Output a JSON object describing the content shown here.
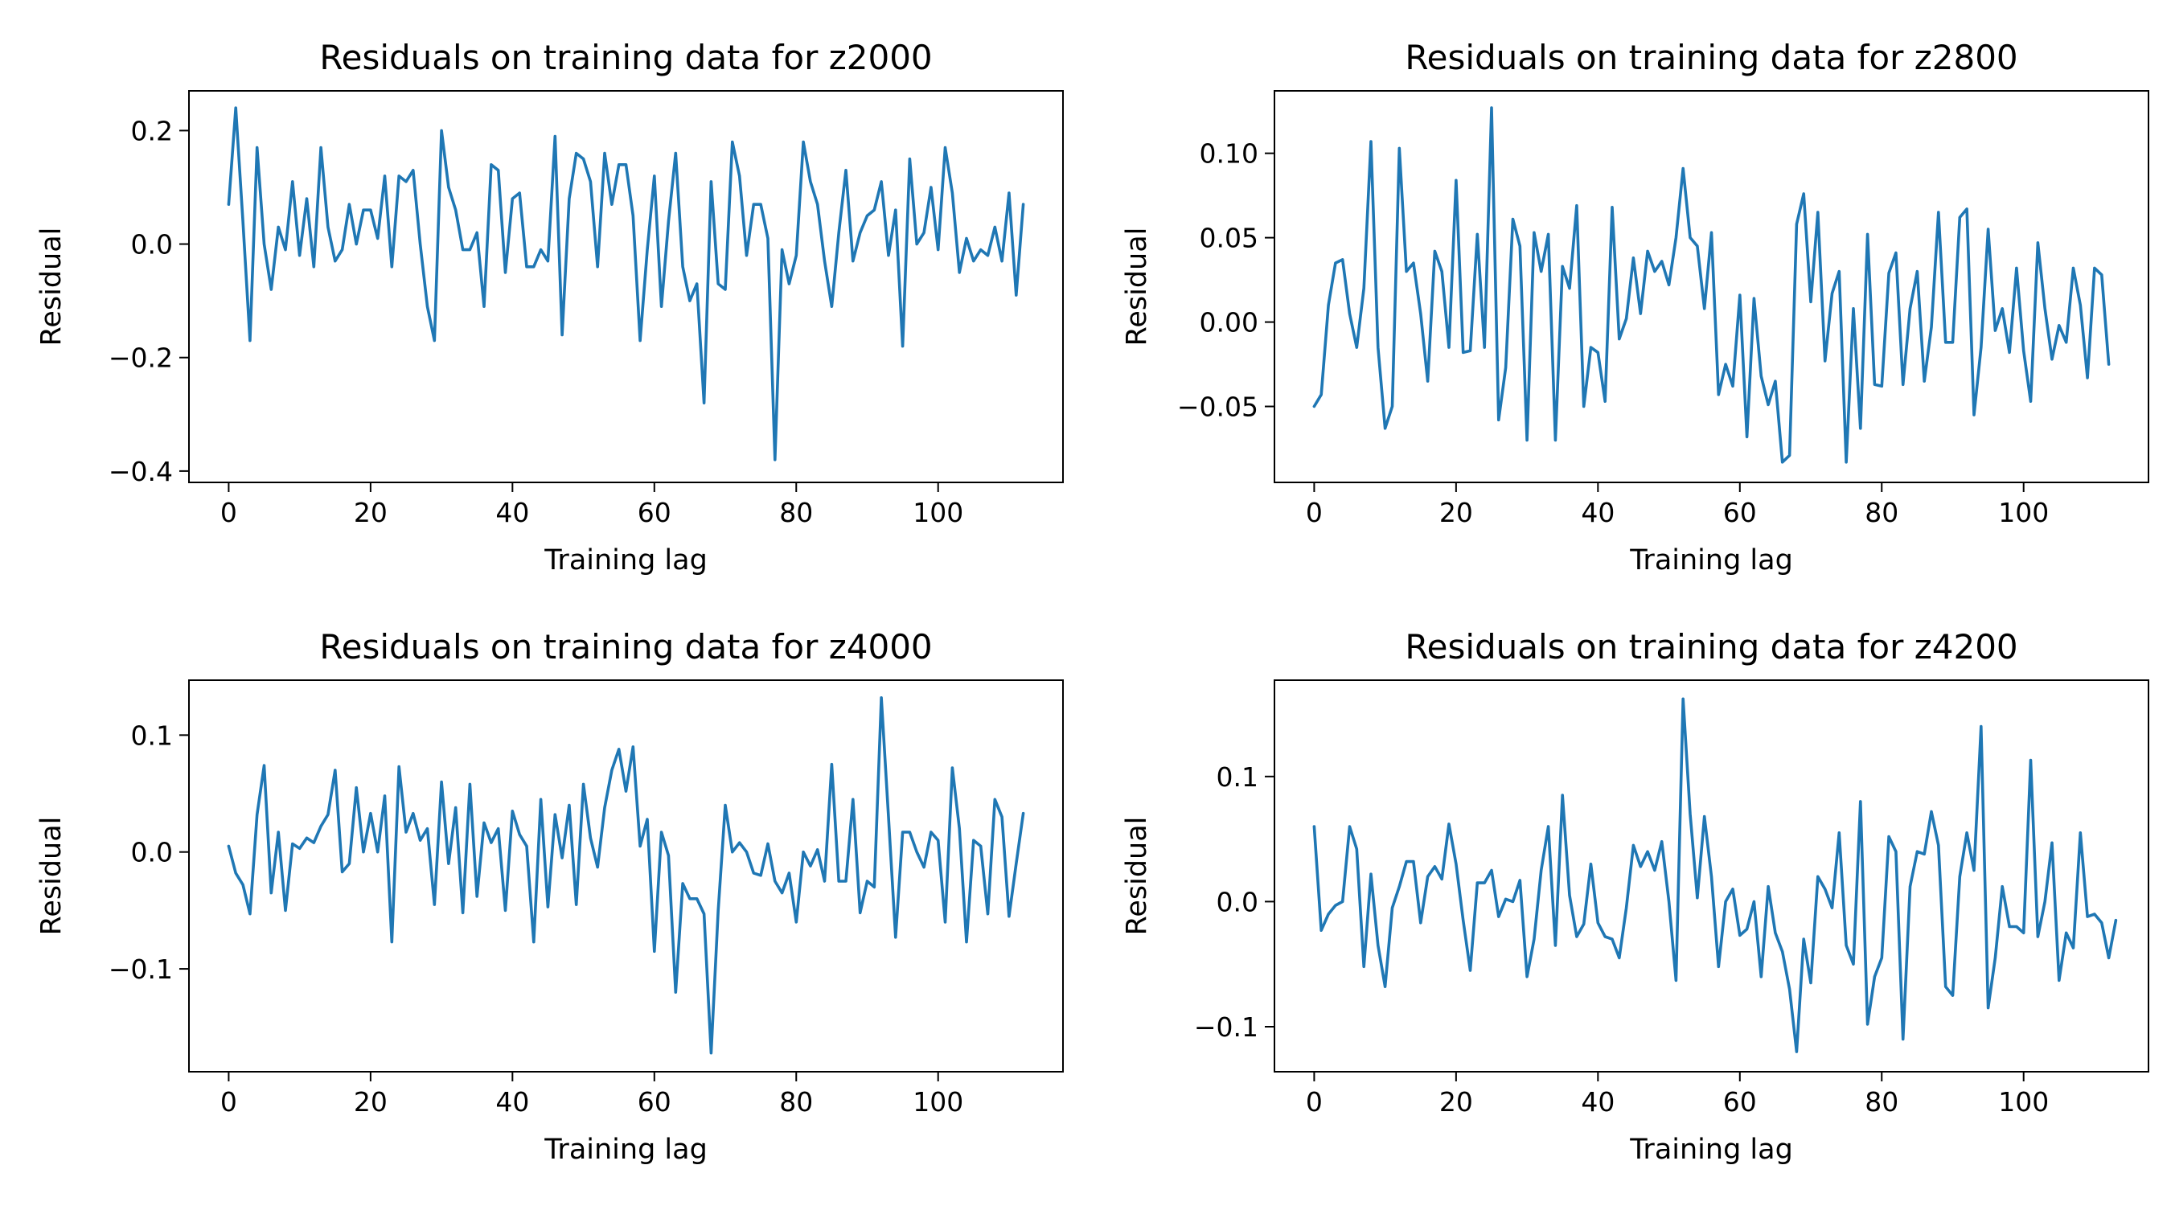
{
  "chart_data": [
    {
      "type": "line",
      "title": "Residuals on training data for z2000",
      "xlabel": "Training lag",
      "ylabel": "Residual",
      "xlim": [
        -5.6,
        117.6
      ],
      "ylim": [
        -0.42,
        0.27
      ],
      "xticks": [
        0,
        20,
        40,
        60,
        80,
        100
      ],
      "xtick_labels": [
        "0",
        "20",
        "40",
        "60",
        "80",
        "100"
      ],
      "yticks": [
        -0.4,
        -0.2,
        0.0,
        0.2
      ],
      "ytick_labels": [
        "−0.4",
        "−0.2",
        "0.0",
        "0.2"
      ],
      "grid": false,
      "color": "#1f77b4",
      "series": [
        {
          "x_start": 0,
          "values": [
            0.07,
            0.24,
            0.04,
            -0.17,
            0.17,
            0.0,
            -0.08,
            0.03,
            -0.01,
            0.11,
            -0.02,
            0.08,
            -0.04,
            0.17,
            0.03,
            -0.03,
            -0.01,
            0.07,
            0.0,
            0.06,
            0.06,
            0.01,
            0.12,
            -0.04,
            0.12,
            0.11,
            0.13,
            0.0,
            -0.11,
            -0.17,
            0.2,
            0.1,
            0.06,
            -0.01,
            -0.01,
            0.02,
            -0.11,
            0.14,
            0.13,
            -0.05,
            0.08,
            0.09,
            -0.04,
            -0.04,
            -0.01,
            -0.03,
            0.19,
            -0.16,
            0.08,
            0.16,
            0.15,
            0.11,
            -0.04,
            0.16,
            0.07,
            0.14,
            0.14,
            0.05,
            -0.17,
            -0.01,
            0.12,
            -0.11,
            0.04,
            0.16,
            -0.04,
            -0.1,
            -0.07,
            -0.28,
            0.11,
            -0.07,
            -0.08,
            0.18,
            0.12,
            -0.02,
            0.07,
            0.07,
            0.01,
            -0.38,
            -0.01,
            -0.07,
            -0.02,
            0.18,
            0.11,
            0.07,
            -0.03,
            -0.11,
            0.02,
            0.13,
            -0.03,
            0.02,
            0.05,
            0.06,
            0.11,
            -0.02,
            0.06,
            -0.18,
            0.15,
            0.0,
            0.02,
            0.1,
            -0.01,
            0.17,
            0.09,
            -0.05,
            0.01,
            -0.03,
            -0.01,
            -0.02,
            0.03,
            -0.03,
            0.09,
            -0.09,
            0.07
          ]
        }
      ]
    },
    {
      "type": "line",
      "title": "Residuals on training data for z2800",
      "xlabel": "Training lag",
      "ylabel": "Residual",
      "xlim": [
        -5.6,
        117.6
      ],
      "ylim": [
        -0.095,
        0.137
      ],
      "xticks": [
        0,
        20,
        40,
        60,
        80,
        100
      ],
      "xtick_labels": [
        "0",
        "20",
        "40",
        "60",
        "80",
        "100"
      ],
      "yticks": [
        -0.05,
        0.0,
        0.05,
        0.1
      ],
      "ytick_labels": [
        "−0.05",
        "0.00",
        "0.05",
        "0.10"
      ],
      "grid": false,
      "color": "#1f77b4",
      "series": [
        {
          "x_start": 0,
          "values": [
            -0.05,
            -0.043,
            0.01,
            0.035,
            0.037,
            0.005,
            -0.015,
            0.02,
            0.107,
            -0.015,
            -0.063,
            -0.05,
            0.103,
            0.03,
            0.035,
            0.005,
            -0.035,
            0.042,
            0.03,
            -0.015,
            0.084,
            -0.018,
            -0.017,
            0.052,
            -0.015,
            0.127,
            -0.058,
            -0.027,
            0.061,
            0.045,
            -0.07,
            0.053,
            0.03,
            0.052,
            -0.07,
            0.033,
            0.02,
            0.069,
            -0.05,
            -0.015,
            -0.018,
            -0.047,
            0.068,
            -0.01,
            0.002,
            0.038,
            0.005,
            0.042,
            0.03,
            0.036,
            0.022,
            0.05,
            0.091,
            0.05,
            0.045,
            0.008,
            0.053,
            -0.043,
            -0.025,
            -0.038,
            0.016,
            -0.068,
            0.014,
            -0.032,
            -0.049,
            -0.035,
            -0.083,
            -0.079,
            0.058,
            0.076,
            0.012,
            0.065,
            -0.023,
            0.017,
            0.03,
            -0.083,
            0.008,
            -0.063,
            0.052,
            -0.037,
            -0.038,
            0.029,
            0.041,
            -0.037,
            0.008,
            0.03,
            -0.035,
            -0.003,
            0.065,
            -0.012,
            -0.012,
            0.062,
            0.067,
            -0.055,
            -0.015,
            0.055,
            -0.005,
            0.008,
            -0.018,
            0.032,
            -0.017,
            -0.047,
            0.047,
            0.008,
            -0.022,
            -0.002,
            -0.012,
            0.032,
            0.01,
            -0.033,
            0.032,
            0.028,
            -0.025
          ]
        }
      ]
    },
    {
      "type": "line",
      "title": "Residuals on training data for z4000",
      "xlabel": "Training lag",
      "ylabel": "Residual",
      "xlim": [
        -5.6,
        117.6
      ],
      "ylim": [
        -0.188,
        0.147
      ],
      "xticks": [
        0,
        20,
        40,
        60,
        80,
        100
      ],
      "xtick_labels": [
        "0",
        "20",
        "40",
        "60",
        "80",
        "100"
      ],
      "yticks": [
        -0.1,
        0.0,
        0.1
      ],
      "ytick_labels": [
        "−0.1",
        "0.0",
        "0.1"
      ],
      "grid": false,
      "color": "#1f77b4",
      "series": [
        {
          "x_start": 0,
          "values": [
            0.005,
            -0.018,
            -0.028,
            -0.053,
            0.032,
            0.074,
            -0.035,
            0.017,
            -0.05,
            0.007,
            0.003,
            0.012,
            0.008,
            0.022,
            0.032,
            0.07,
            -0.017,
            -0.01,
            0.055,
            0.0,
            0.033,
            0.0,
            0.048,
            -0.077,
            0.073,
            0.017,
            0.033,
            0.01,
            0.02,
            -0.045,
            0.06,
            -0.01,
            0.038,
            -0.052,
            0.058,
            -0.038,
            0.025,
            0.008,
            0.02,
            -0.05,
            0.035,
            0.015,
            0.005,
            -0.077,
            0.045,
            -0.047,
            0.032,
            -0.005,
            0.04,
            -0.045,
            0.058,
            0.012,
            -0.013,
            0.038,
            0.07,
            0.088,
            0.052,
            0.09,
            0.005,
            0.028,
            -0.085,
            0.017,
            -0.003,
            -0.12,
            -0.027,
            -0.04,
            -0.04,
            -0.053,
            -0.172,
            -0.05,
            0.04,
            0.0,
            0.008,
            0.0,
            -0.018,
            -0.02,
            0.007,
            -0.025,
            -0.035,
            -0.018,
            -0.06,
            0.0,
            -0.012,
            0.002,
            -0.025,
            0.075,
            -0.025,
            -0.025,
            0.045,
            -0.052,
            -0.025,
            -0.03,
            0.132,
            0.03,
            -0.073,
            0.017,
            0.017,
            0.0,
            -0.013,
            0.017,
            0.01,
            -0.06,
            0.072,
            0.02,
            -0.077,
            0.01,
            0.005,
            -0.053,
            0.045,
            0.03,
            -0.055,
            -0.01,
            0.033
          ]
        }
      ]
    },
    {
      "type": "line",
      "title": "Residuals on training data for z4200",
      "xlabel": "Training lag",
      "ylabel": "Residual",
      "xlim": [
        -5.6,
        117.6
      ],
      "ylim": [
        -0.136,
        0.177
      ],
      "xticks": [
        0,
        20,
        40,
        60,
        80,
        100
      ],
      "xtick_labels": [
        "0",
        "20",
        "40",
        "60",
        "80",
        "100"
      ],
      "yticks": [
        -0.1,
        0.0,
        0.1
      ],
      "ytick_labels": [
        "−0.1",
        "0.0",
        "0.1"
      ],
      "grid": false,
      "color": "#1f77b4",
      "series": [
        {
          "x_start": 0,
          "values": [
            0.06,
            -0.023,
            -0.01,
            -0.003,
            0.0,
            0.06,
            0.042,
            -0.052,
            0.022,
            -0.035,
            -0.068,
            -0.005,
            0.012,
            0.032,
            0.032,
            -0.017,
            0.02,
            0.028,
            0.018,
            0.062,
            0.03,
            -0.015,
            -0.055,
            0.015,
            0.015,
            0.025,
            -0.012,
            0.002,
            0.0,
            0.017,
            -0.06,
            -0.03,
            0.025,
            0.06,
            -0.035,
            0.085,
            0.005,
            -0.028,
            -0.018,
            0.03,
            -0.017,
            -0.028,
            -0.03,
            -0.045,
            -0.005,
            0.045,
            0.028,
            0.04,
            0.025,
            0.048,
            0.0,
            -0.063,
            0.162,
            0.07,
            0.003,
            0.068,
            0.02,
            -0.052,
            0.0,
            0.01,
            -0.027,
            -0.022,
            0.0,
            -0.06,
            0.012,
            -0.025,
            -0.04,
            -0.07,
            -0.12,
            -0.03,
            -0.065,
            0.02,
            0.01,
            -0.005,
            0.055,
            -0.035,
            -0.05,
            0.08,
            -0.098,
            -0.06,
            -0.045,
            0.052,
            0.04,
            -0.11,
            0.012,
            0.04,
            0.038,
            0.072,
            0.045,
            -0.068,
            -0.075,
            0.02,
            0.055,
            0.025,
            0.14,
            -0.085,
            -0.045,
            0.012,
            -0.02,
            -0.02,
            -0.025,
            0.113,
            -0.028,
            0.0,
            0.047,
            -0.063,
            -0.025,
            -0.037,
            0.055,
            -0.012,
            -0.01,
            -0.017,
            -0.045,
            -0.015
          ]
        }
      ]
    }
  ]
}
